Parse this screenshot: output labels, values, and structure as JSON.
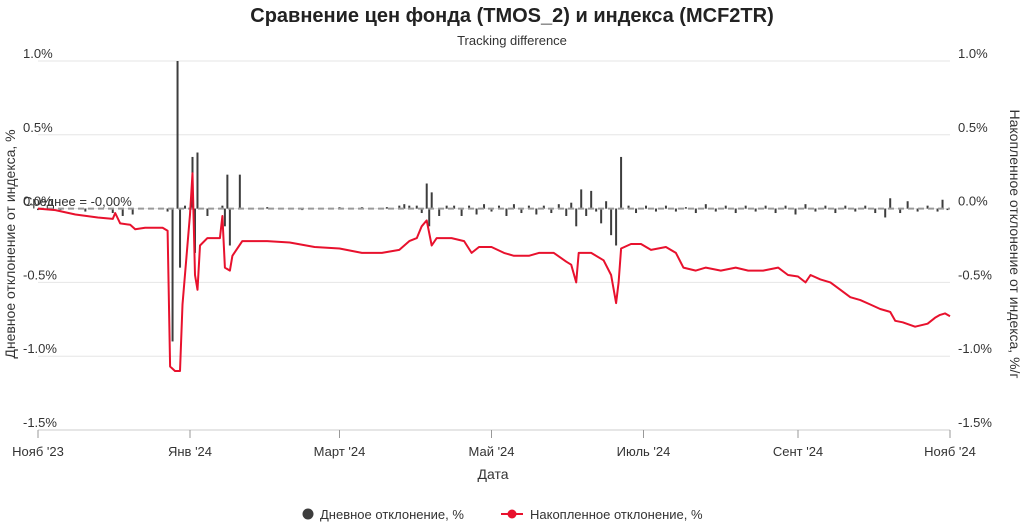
{
  "chart_data": {
    "type": "line",
    "title": "Сравнение цен фонда (TMOS_2) и индекса (MCF2TR)",
    "subtitle": "Tracking difference",
    "xlabel": "Дата",
    "ylabel_left": "Дневное отклонение от индекса, %",
    "ylabel_right": "Накопленное отклонение от индекса, %/г",
    "x_range": [
      "2023-11-01",
      "2024-11-01"
    ],
    "x_ticks": [
      {
        "date": "2023-11-01",
        "label": "Нояб '23"
      },
      {
        "date": "2024-01-01",
        "label": "Янв '24"
      },
      {
        "date": "2024-03-01",
        "label": "Март '24"
      },
      {
        "date": "2024-05-01",
        "label": "Май '24"
      },
      {
        "date": "2024-07-01",
        "label": "Июль '24"
      },
      {
        "date": "2024-09-01",
        "label": "Сент '24"
      },
      {
        "date": "2024-11-01",
        "label": "Нояб '24"
      }
    ],
    "ylim": [
      -1.5,
      1.0
    ],
    "y_ticks": [
      1.0,
      0.5,
      0.0,
      -0.5,
      -1.0,
      -1.5
    ],
    "y_tick_labels": [
      "1.0%",
      "0.5%",
      "0.0%",
      "-0.5%",
      "-1.0%",
      "-1.5%"
    ],
    "grid": true,
    "legend_position": "bottom-center",
    "annotation": "Среднее = -0,00%",
    "series": [
      {
        "name": "Дневное отклонение, %",
        "kind": "column",
        "color": "#3d3d3d",
        "points": [
          [
            "2023-11-01",
            -0.01
          ],
          [
            "2023-11-10",
            -0.01
          ],
          [
            "2023-11-20",
            -0.02
          ],
          [
            "2023-12-01",
            -0.03
          ],
          [
            "2023-12-05",
            -0.05
          ],
          [
            "2023-12-09",
            -0.04
          ],
          [
            "2023-12-23",
            -0.02
          ],
          [
            "2023-12-25",
            -0.9
          ],
          [
            "2023-12-27",
            1.0
          ],
          [
            "2023-12-28",
            -0.4
          ],
          [
            "2023-12-30",
            0.02
          ],
          [
            "2024-01-02",
            0.35
          ],
          [
            "2024-01-03",
            -0.3
          ],
          [
            "2024-01-04",
            0.38
          ],
          [
            "2024-01-08",
            -0.05
          ],
          [
            "2024-01-14",
            0.02
          ],
          [
            "2024-01-15",
            -0.12
          ],
          [
            "2024-01-16",
            0.23
          ],
          [
            "2024-01-17",
            -0.25
          ],
          [
            "2024-01-21",
            0.23
          ],
          [
            "2024-02-01",
            0.01
          ],
          [
            "2024-02-15",
            -0.01
          ],
          [
            "2024-03-01",
            0.01
          ],
          [
            "2024-03-10",
            0.01
          ],
          [
            "2024-03-20",
            0.01
          ],
          [
            "2024-03-25",
            0.02
          ],
          [
            "2024-03-27",
            0.03
          ],
          [
            "2024-03-29",
            0.02
          ],
          [
            "2024-04-01",
            0.02
          ],
          [
            "2024-04-03",
            -0.03
          ],
          [
            "2024-04-05",
            0.17
          ],
          [
            "2024-04-06",
            -0.12
          ],
          [
            "2024-04-07",
            0.11
          ],
          [
            "2024-04-10",
            -0.05
          ],
          [
            "2024-04-13",
            0.02
          ],
          [
            "2024-04-16",
            0.02
          ],
          [
            "2024-04-19",
            -0.05
          ],
          [
            "2024-04-22",
            0.02
          ],
          [
            "2024-04-25",
            -0.04
          ],
          [
            "2024-04-28",
            0.03
          ],
          [
            "2024-05-01",
            -0.02
          ],
          [
            "2024-05-04",
            0.02
          ],
          [
            "2024-05-07",
            -0.05
          ],
          [
            "2024-05-10",
            0.03
          ],
          [
            "2024-05-13",
            -0.03
          ],
          [
            "2024-05-16",
            0.02
          ],
          [
            "2024-05-19",
            -0.04
          ],
          [
            "2024-05-22",
            0.02
          ],
          [
            "2024-05-25",
            -0.03
          ],
          [
            "2024-05-28",
            0.03
          ],
          [
            "2024-05-31",
            -0.05
          ],
          [
            "2024-06-02",
            0.04
          ],
          [
            "2024-06-04",
            -0.12
          ],
          [
            "2024-06-06",
            0.13
          ],
          [
            "2024-06-08",
            -0.05
          ],
          [
            "2024-06-10",
            0.12
          ],
          [
            "2024-06-12",
            -0.02
          ],
          [
            "2024-06-14",
            -0.1
          ],
          [
            "2024-06-16",
            0.05
          ],
          [
            "2024-06-18",
            -0.18
          ],
          [
            "2024-06-20",
            -0.25
          ],
          [
            "2024-06-22",
            0.35
          ],
          [
            "2024-06-25",
            0.02
          ],
          [
            "2024-06-28",
            -0.03
          ],
          [
            "2024-07-02",
            0.02
          ],
          [
            "2024-07-06",
            -0.02
          ],
          [
            "2024-07-10",
            0.02
          ],
          [
            "2024-07-14",
            -0.02
          ],
          [
            "2024-07-18",
            0.01
          ],
          [
            "2024-07-22",
            -0.03
          ],
          [
            "2024-07-26",
            0.03
          ],
          [
            "2024-07-30",
            -0.02
          ],
          [
            "2024-08-03",
            0.02
          ],
          [
            "2024-08-07",
            -0.03
          ],
          [
            "2024-08-11",
            0.02
          ],
          [
            "2024-08-15",
            -0.02
          ],
          [
            "2024-08-19",
            0.02
          ],
          [
            "2024-08-23",
            -0.03
          ],
          [
            "2024-08-27",
            0.02
          ],
          [
            "2024-08-31",
            -0.04
          ],
          [
            "2024-09-04",
            0.03
          ],
          [
            "2024-09-08",
            -0.02
          ],
          [
            "2024-09-12",
            0.02
          ],
          [
            "2024-09-16",
            -0.03
          ],
          [
            "2024-09-20",
            0.02
          ],
          [
            "2024-09-24",
            -0.02
          ],
          [
            "2024-09-28",
            0.02
          ],
          [
            "2024-10-02",
            -0.03
          ],
          [
            "2024-10-06",
            -0.06
          ],
          [
            "2024-10-08",
            0.07
          ],
          [
            "2024-10-12",
            -0.03
          ],
          [
            "2024-10-15",
            0.05
          ],
          [
            "2024-10-19",
            -0.02
          ],
          [
            "2024-10-23",
            0.02
          ],
          [
            "2024-10-27",
            -0.02
          ],
          [
            "2024-10-29",
            0.06
          ],
          [
            "2024-10-31",
            -0.01
          ]
        ]
      },
      {
        "name": "Накопленное отклонение, %",
        "kind": "line",
        "color": "#e8112d",
        "points": [
          [
            "2023-11-01",
            0.0
          ],
          [
            "2023-11-08",
            -0.01
          ],
          [
            "2023-11-16",
            -0.04
          ],
          [
            "2023-11-25",
            -0.06
          ],
          [
            "2023-12-01",
            -0.07
          ],
          [
            "2023-12-02",
            -0.03
          ],
          [
            "2023-12-04",
            -0.1
          ],
          [
            "2023-12-08",
            -0.11
          ],
          [
            "2023-12-10",
            -0.14
          ],
          [
            "2023-12-14",
            -0.13
          ],
          [
            "2023-12-21",
            -0.13
          ],
          [
            "2023-12-23",
            -0.15
          ],
          [
            "2023-12-24",
            -1.07
          ],
          [
            "2023-12-26",
            -1.1
          ],
          [
            "2023-12-28",
            -1.1
          ],
          [
            "2023-12-29",
            -0.65
          ],
          [
            "2024-01-01",
            -0.04
          ],
          [
            "2024-01-02",
            0.24
          ],
          [
            "2024-01-03",
            -0.45
          ],
          [
            "2024-01-04",
            -0.55
          ],
          [
            "2024-01-05",
            -0.25
          ],
          [
            "2024-01-08",
            -0.2
          ],
          [
            "2024-01-13",
            -0.2
          ],
          [
            "2024-01-14",
            -0.05
          ],
          [
            "2024-01-15",
            -0.4
          ],
          [
            "2024-01-17",
            -0.42
          ],
          [
            "2024-01-18",
            -0.32
          ],
          [
            "2024-01-22",
            -0.22
          ],
          [
            "2024-02-01",
            -0.22
          ],
          [
            "2024-02-10",
            -0.23
          ],
          [
            "2024-02-20",
            -0.26
          ],
          [
            "2024-03-01",
            -0.27
          ],
          [
            "2024-03-10",
            -0.3
          ],
          [
            "2024-03-18",
            -0.3
          ],
          [
            "2024-03-25",
            -0.28
          ],
          [
            "2024-03-29",
            -0.22
          ],
          [
            "2024-04-01",
            -0.2
          ],
          [
            "2024-04-03",
            -0.12
          ],
          [
            "2024-04-05",
            -0.08
          ],
          [
            "2024-04-07",
            -0.25
          ],
          [
            "2024-04-09",
            -0.2
          ],
          [
            "2024-04-15",
            -0.2
          ],
          [
            "2024-04-20",
            -0.22
          ],
          [
            "2024-04-23",
            -0.3
          ],
          [
            "2024-04-26",
            -0.26
          ],
          [
            "2024-05-01",
            -0.26
          ],
          [
            "2024-05-06",
            -0.3
          ],
          [
            "2024-05-10",
            -0.32
          ],
          [
            "2024-05-16",
            -0.32
          ],
          [
            "2024-05-20",
            -0.3
          ],
          [
            "2024-05-26",
            -0.3
          ],
          [
            "2024-05-31",
            -0.36
          ],
          [
            "2024-06-02",
            -0.38
          ],
          [
            "2024-06-04",
            -0.5
          ],
          [
            "2024-06-05",
            -0.3
          ],
          [
            "2024-06-10",
            -0.3
          ],
          [
            "2024-06-15",
            -0.35
          ],
          [
            "2024-06-18",
            -0.45
          ],
          [
            "2024-06-20",
            -0.64
          ],
          [
            "2024-06-21",
            -0.5
          ],
          [
            "2024-06-22",
            -0.27
          ],
          [
            "2024-06-26",
            -0.24
          ],
          [
            "2024-06-30",
            -0.24
          ],
          [
            "2024-07-04",
            -0.28
          ],
          [
            "2024-07-10",
            -0.26
          ],
          [
            "2024-07-14",
            -0.3
          ],
          [
            "2024-07-17",
            -0.4
          ],
          [
            "2024-07-22",
            -0.42
          ],
          [
            "2024-07-26",
            -0.4
          ],
          [
            "2024-08-01",
            -0.42
          ],
          [
            "2024-08-07",
            -0.4
          ],
          [
            "2024-08-12",
            -0.42
          ],
          [
            "2024-08-18",
            -0.42
          ],
          [
            "2024-08-24",
            -0.4
          ],
          [
            "2024-08-28",
            -0.45
          ],
          [
            "2024-09-01",
            -0.46
          ],
          [
            "2024-09-04",
            -0.5
          ],
          [
            "2024-09-06",
            -0.45
          ],
          [
            "2024-09-10",
            -0.48
          ],
          [
            "2024-09-14",
            -0.5
          ],
          [
            "2024-09-18",
            -0.55
          ],
          [
            "2024-09-22",
            -0.6
          ],
          [
            "2024-09-26",
            -0.62
          ],
          [
            "2024-09-30",
            -0.65
          ],
          [
            "2024-10-04",
            -0.68
          ],
          [
            "2024-10-08",
            -0.7
          ],
          [
            "2024-10-10",
            -0.76
          ],
          [
            "2024-10-13",
            -0.77
          ],
          [
            "2024-10-18",
            -0.8
          ],
          [
            "2024-10-23",
            -0.78
          ],
          [
            "2024-10-26",
            -0.74
          ],
          [
            "2024-10-28",
            -0.72
          ],
          [
            "2024-10-30",
            -0.71
          ],
          [
            "2024-11-01",
            -0.73
          ]
        ]
      }
    ]
  }
}
